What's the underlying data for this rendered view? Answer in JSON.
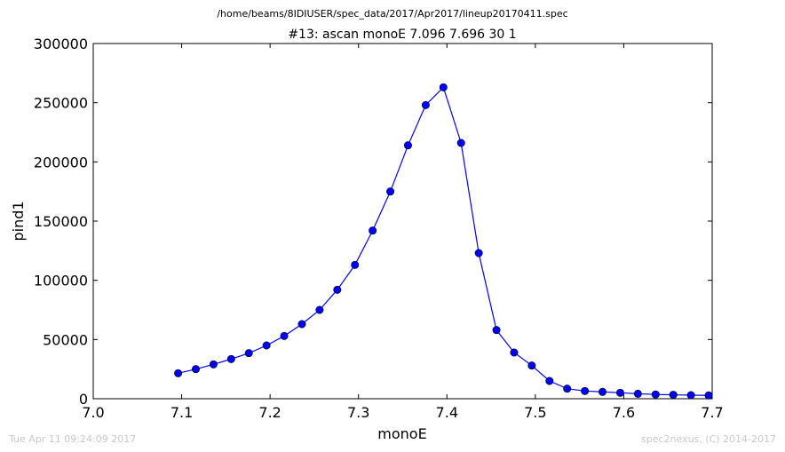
{
  "suptitle": "/home/beams/8IDIUSER/spec_data/2017/Apr2017/lineup20170411.spec",
  "footer": {
    "timestamp": "Tue Apr 11 09:24:09 2017",
    "credit": "spec2nexus, (C) 2014-2017"
  },
  "chart_data": {
    "type": "line",
    "title": "#13: ascan  monoE 7.096 7.696  30 1",
    "xlabel": "monoE",
    "ylabel": "pind1",
    "xlim": [
      7.0,
      7.7
    ],
    "ylim": [
      0,
      300000
    ],
    "xticks": [
      "7.0",
      "7.1",
      "7.2",
      "7.3",
      "7.4",
      "7.5",
      "7.6",
      "7.7"
    ],
    "yticks": [
      "0",
      "50000",
      "100000",
      "150000",
      "200000",
      "250000",
      "300000"
    ],
    "grid": false,
    "marker": "circle",
    "color": "#0000ff",
    "series": [
      {
        "x": [
          7.096,
          7.116,
          7.136,
          7.156,
          7.176,
          7.196,
          7.216,
          7.236,
          7.256,
          7.276,
          7.296,
          7.316,
          7.336,
          7.356,
          7.376,
          7.396,
          7.416,
          7.436,
          7.456,
          7.476,
          7.496,
          7.516,
          7.536,
          7.556,
          7.576,
          7.596,
          7.616,
          7.636,
          7.656,
          7.676,
          7.696
        ],
        "y": [
          21500,
          25000,
          29000,
          33500,
          38500,
          45000,
          53000,
          63000,
          75000,
          92000,
          113000,
          142000,
          175000,
          214000,
          248000,
          263000,
          216000,
          123000,
          58000,
          39000,
          28000,
          15000,
          8500,
          6500,
          5800,
          5000,
          4200,
          3600,
          3300,
          3000,
          2800
        ]
      }
    ]
  }
}
